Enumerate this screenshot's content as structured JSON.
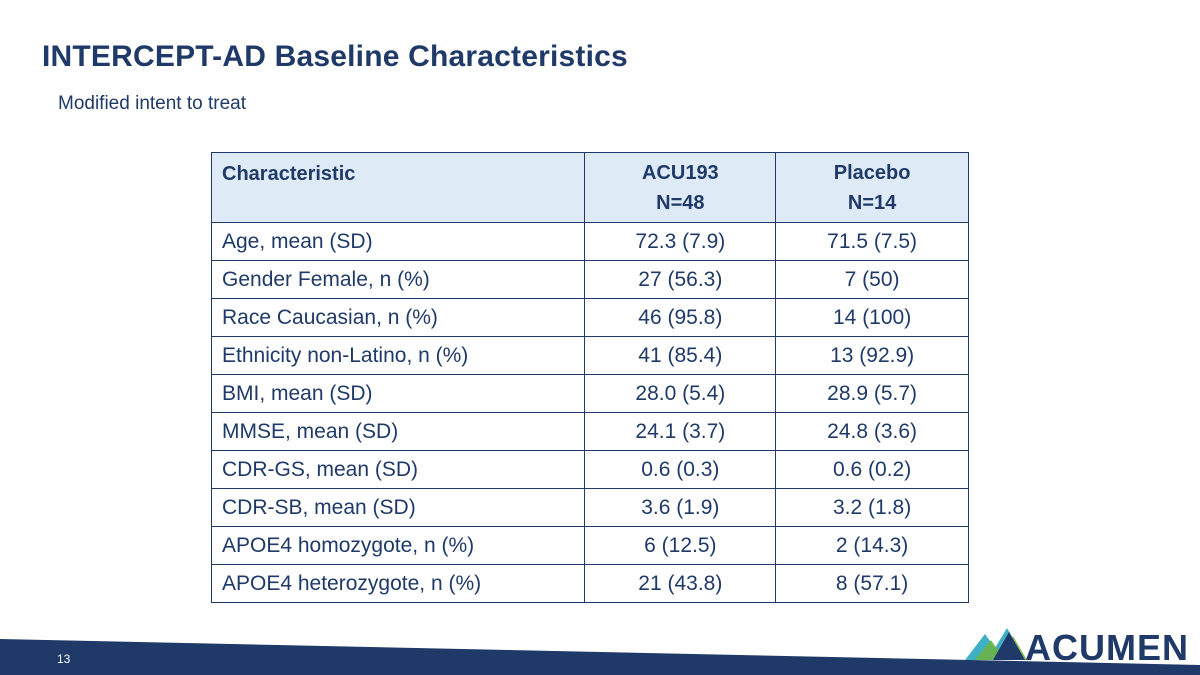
{
  "slide": {
    "title": "INTERCEPT-AD Baseline Characteristics",
    "subtitle": "Modified intent to treat",
    "page_number": "13",
    "brand": "ACUMEN"
  },
  "table": {
    "headers": {
      "characteristic": "Characteristic",
      "acu193_name": "ACU193",
      "acu193_n": "N=48",
      "placebo_name": "Placebo",
      "placebo_n": "N=14"
    },
    "rows": [
      {
        "characteristic": "Age, mean (SD)",
        "acu193": "72.3 (7.9)",
        "placebo": "71.5 (7.5)"
      },
      {
        "characteristic": "Gender Female, n (%)",
        "acu193": "27 (56.3)",
        "placebo": "7 (50)"
      },
      {
        "characteristic": "Race Caucasian, n (%)",
        "acu193": "46 (95.8)",
        "placebo": "14 (100)"
      },
      {
        "characteristic": "Ethnicity non-Latino, n (%)",
        "acu193": "41 (85.4)",
        "placebo": "13 (92.9)"
      },
      {
        "characteristic": "BMI, mean (SD)",
        "acu193": "28.0 (5.4)",
        "placebo": "28.9 (5.7)"
      },
      {
        "characteristic": "MMSE, mean (SD)",
        "acu193": "24.1 (3.7)",
        "placebo": "24.8 (3.6)"
      },
      {
        "characteristic": "CDR-GS, mean (SD)",
        "acu193": "0.6 (0.3)",
        "placebo": "0.6 (0.2)"
      },
      {
        "characteristic": "CDR-SB, mean (SD)",
        "acu193": "3.6 (1.9)",
        "placebo": "3.2 (1.8)"
      },
      {
        "characteristic": "APOE4 homozygote, n (%)",
        "acu193": "6 (12.5)",
        "placebo": "2 (14.3)"
      },
      {
        "characteristic": "APOE4 heterozygote, n (%)",
        "acu193": "21 (43.8)",
        "placebo": "8 (57.1)"
      }
    ]
  },
  "colors": {
    "primary": "#1f3a68",
    "header_fill": "#deebf7",
    "logo_teal": "#3fb0c4",
    "logo_green": "#6fb43f"
  }
}
